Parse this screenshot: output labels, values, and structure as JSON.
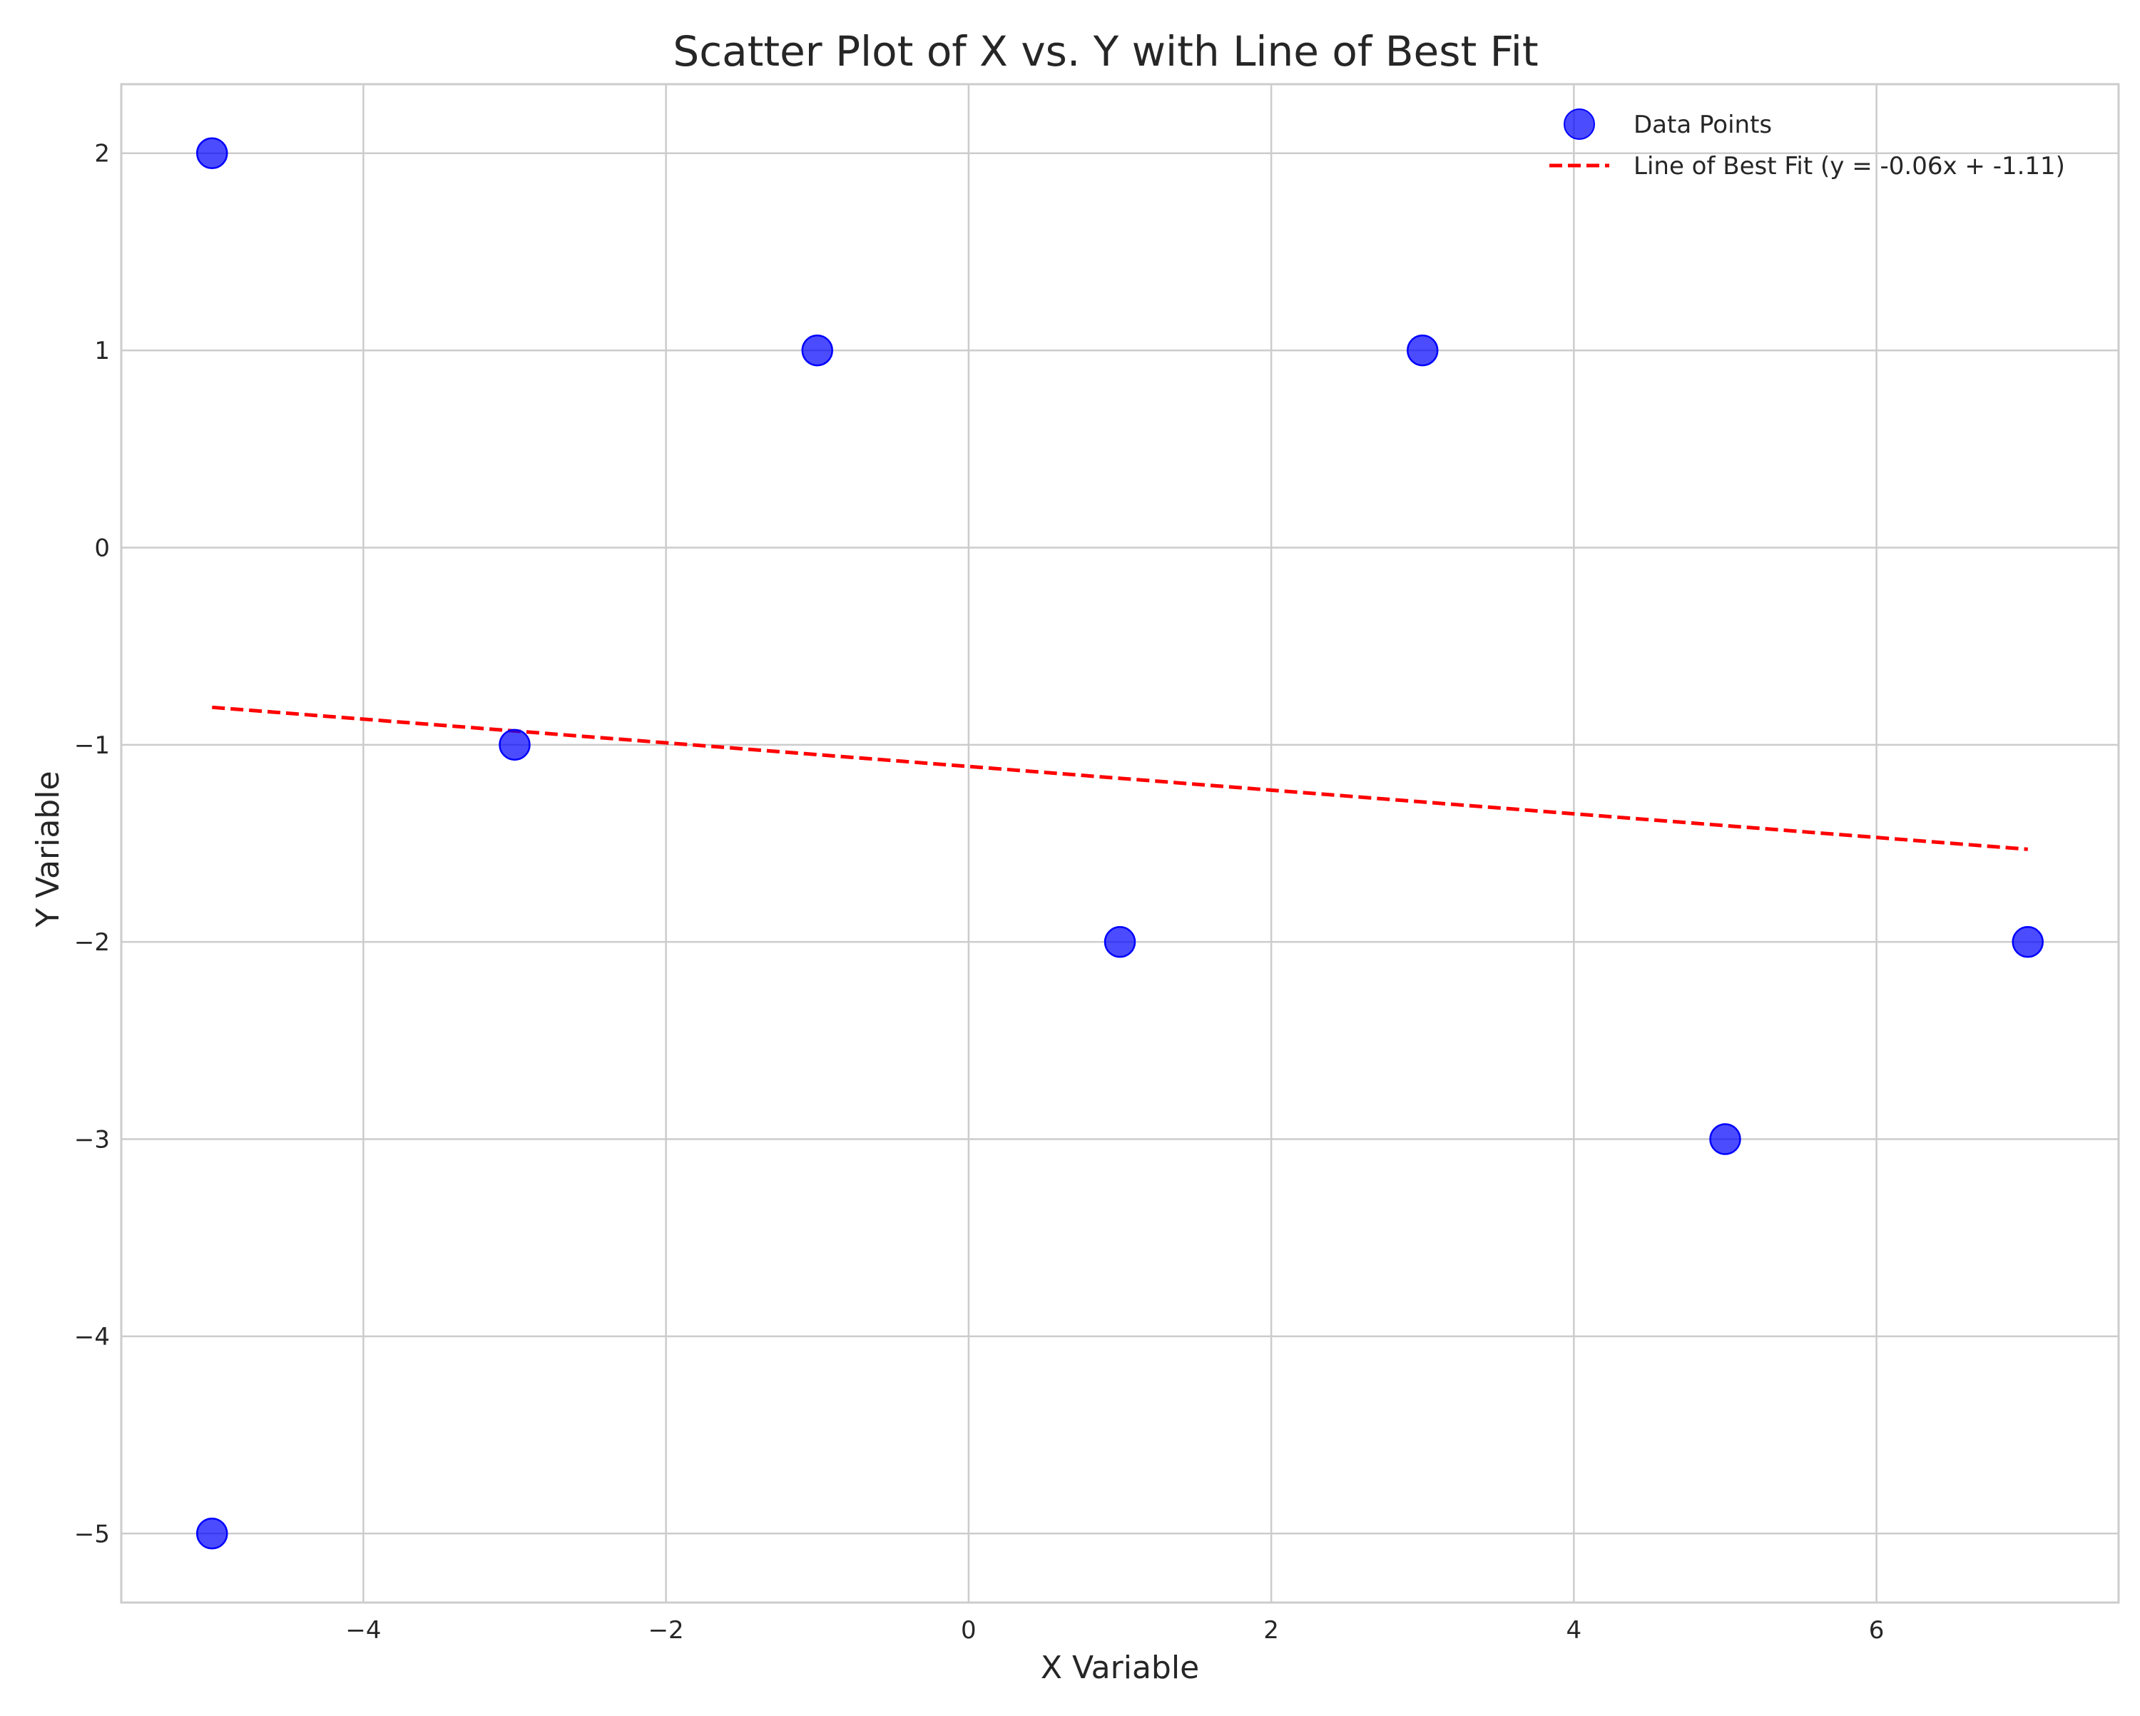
{
  "chart_data": {
    "type": "scatter",
    "title": "Scatter Plot of X vs. Y with Line of Best Fit",
    "xlabel": "X Variable",
    "ylabel": "Y Variable",
    "xlim": [
      -5.6,
      7.6
    ],
    "ylim": [
      -5.35,
      2.35
    ],
    "xticks": [
      -4,
      -2,
      0,
      2,
      4,
      6
    ],
    "yticks": [
      -5,
      -4,
      -3,
      -2,
      -1,
      0,
      1,
      2
    ],
    "xtick_labels": [
      "−4",
      "−2",
      "0",
      "2",
      "4",
      "6"
    ],
    "ytick_labels": [
      "−5",
      "−4",
      "−3",
      "−2",
      "−1",
      "0",
      "1",
      "2"
    ],
    "grid": true,
    "legend_position": "top-right",
    "series": [
      {
        "name": "Data Points",
        "kind": "scatter",
        "color": "#0000ff",
        "x": [
          -5,
          -5,
          -3,
          -1,
          1,
          3,
          5,
          7
        ],
        "y": [
          2,
          -5,
          -1,
          1,
          -2,
          1,
          -3,
          -2
        ]
      },
      {
        "name": "Line of Best Fit (y = -0.06x + -1.11)",
        "kind": "line",
        "style": "dashed",
        "color": "#ff0000",
        "x": [
          -5,
          7
        ],
        "y": [
          -0.81,
          -1.53
        ]
      }
    ]
  }
}
